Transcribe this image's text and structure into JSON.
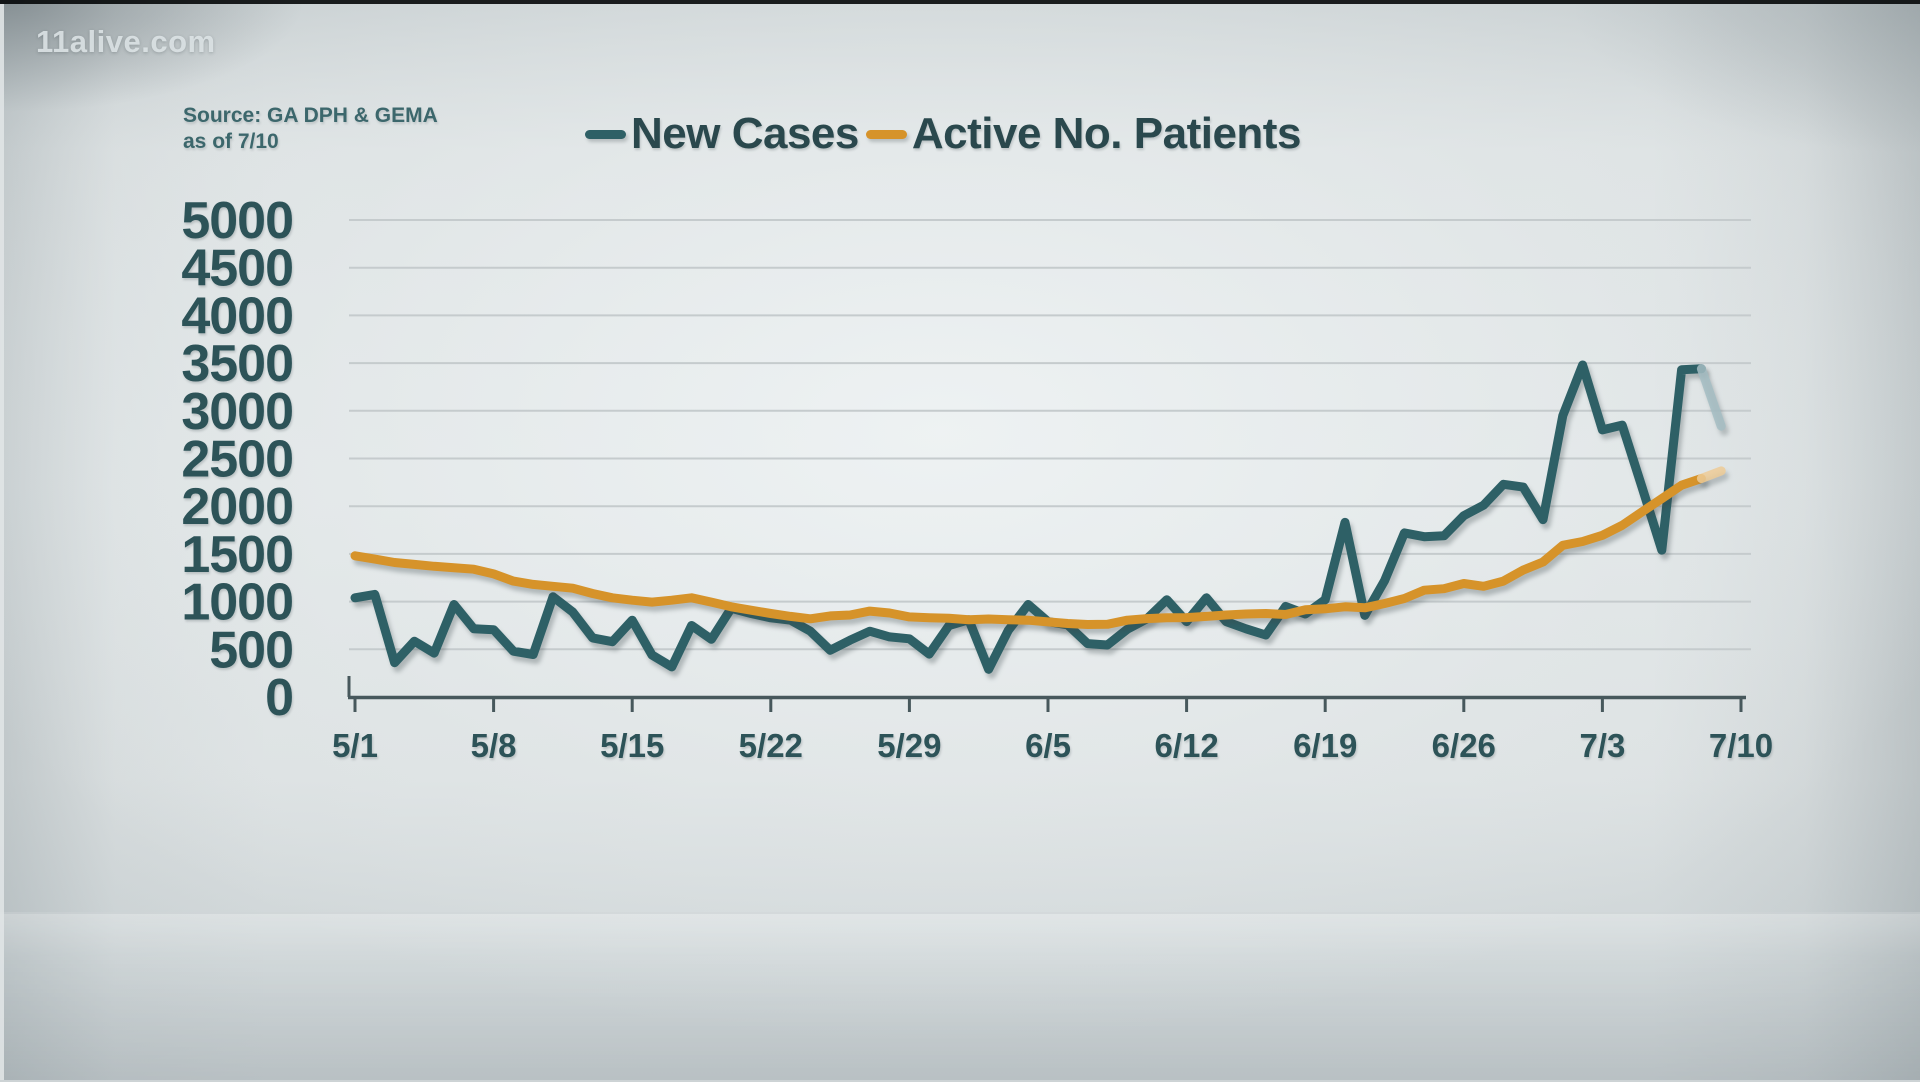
{
  "branding": {
    "watermark": "11alive.com"
  },
  "source": {
    "line1": "Source: GA DPH & GEMA",
    "line2": "as of 7/10"
  },
  "legend": [
    {
      "label": "New Cases",
      "color": "#2e6066"
    },
    {
      "label": "Active No. Patients",
      "color": "#d6932a"
    }
  ],
  "colors": {
    "teal_line": "#2e6066",
    "teal_faded": "#a4bdc3",
    "orange_line": "#d6932a",
    "orange_faded": "#edcb96",
    "label_text": "#2d5358",
    "gridline": "#c5cbcd",
    "axis": "#47585c",
    "background": "#dde2e3"
  },
  "chart_data": {
    "type": "line",
    "title": "",
    "xlabel": "",
    "ylabel": "",
    "ylim": [
      0,
      5000
    ],
    "ytick_step": 500,
    "grid": true,
    "legend_position": "top",
    "x_tick_labels": [
      "5/1",
      "5/8",
      "5/15",
      "5/22",
      "5/29",
      "6/5",
      "6/12",
      "6/19",
      "6/26",
      "7/3",
      "7/10"
    ],
    "x_tick_every": 7,
    "x": [
      "5/1",
      "5/2",
      "5/3",
      "5/4",
      "5/5",
      "5/6",
      "5/7",
      "5/8",
      "5/9",
      "5/10",
      "5/11",
      "5/12",
      "5/13",
      "5/14",
      "5/15",
      "5/16",
      "5/17",
      "5/18",
      "5/19",
      "5/20",
      "5/21",
      "5/22",
      "5/23",
      "5/24",
      "5/25",
      "5/26",
      "5/27",
      "5/28",
      "5/29",
      "5/30",
      "5/31",
      "6/1",
      "6/2",
      "6/3",
      "6/4",
      "6/5",
      "6/6",
      "6/7",
      "6/8",
      "6/9",
      "6/10",
      "6/11",
      "6/12",
      "6/13",
      "6/14",
      "6/15",
      "6/16",
      "6/17",
      "6/18",
      "6/19",
      "6/20",
      "6/21",
      "6/22",
      "6/23",
      "6/24",
      "6/25",
      "6/26",
      "6/27",
      "6/28",
      "6/29",
      "6/30",
      "7/1",
      "7/2",
      "7/3",
      "7/4",
      "7/5",
      "7/6",
      "7/7",
      "7/8",
      "7/9",
      "7/10"
    ],
    "series": [
      {
        "name": "New Cases",
        "color": "#2e6066",
        "faded_color": "#a4bdc3",
        "fade_from_index": 68,
        "values": [
          1040,
          1075,
          360,
          585,
          460,
          970,
          715,
          705,
          480,
          445,
          1050,
          890,
          620,
          580,
          805,
          440,
          315,
          750,
          605,
          930,
          875,
          830,
          805,
          690,
          490,
          595,
          690,
          630,
          610,
          450,
          750,
          810,
          290,
          700,
          970,
          790,
          755,
          560,
          545,
          710,
          820,
          1020,
          790,
          1040,
          790,
          715,
          650,
          950,
          870,
          1020,
          1830,
          855,
          1220,
          1720,
          1680,
          1690,
          1900,
          2010,
          2230,
          2200,
          1860,
          2950,
          3480,
          2800,
          2850,
          2200,
          1540,
          3430,
          3440,
          2840,
          null
        ]
      },
      {
        "name": "Active No. Patients",
        "color": "#d6932a",
        "faded_color": "#edcb96",
        "fade_from_index": 68,
        "values": [
          1480,
          1445,
          1410,
          1390,
          1370,
          1355,
          1340,
          1290,
          1215,
          1180,
          1160,
          1140,
          1085,
          1040,
          1015,
          995,
          1015,
          1040,
          995,
          945,
          910,
          875,
          845,
          820,
          850,
          860,
          900,
          880,
          840,
          830,
          825,
          810,
          818,
          810,
          805,
          787,
          770,
          760,
          762,
          805,
          822,
          830,
          832,
          845,
          860,
          870,
          875,
          865,
          915,
          925,
          945,
          935,
          980,
          1032,
          1120,
          1135,
          1190,
          1160,
          1215,
          1330,
          1415,
          1590,
          1630,
          1695,
          1800,
          1940,
          2080,
          2220,
          2290,
          2370,
          null
        ]
      }
    ]
  }
}
